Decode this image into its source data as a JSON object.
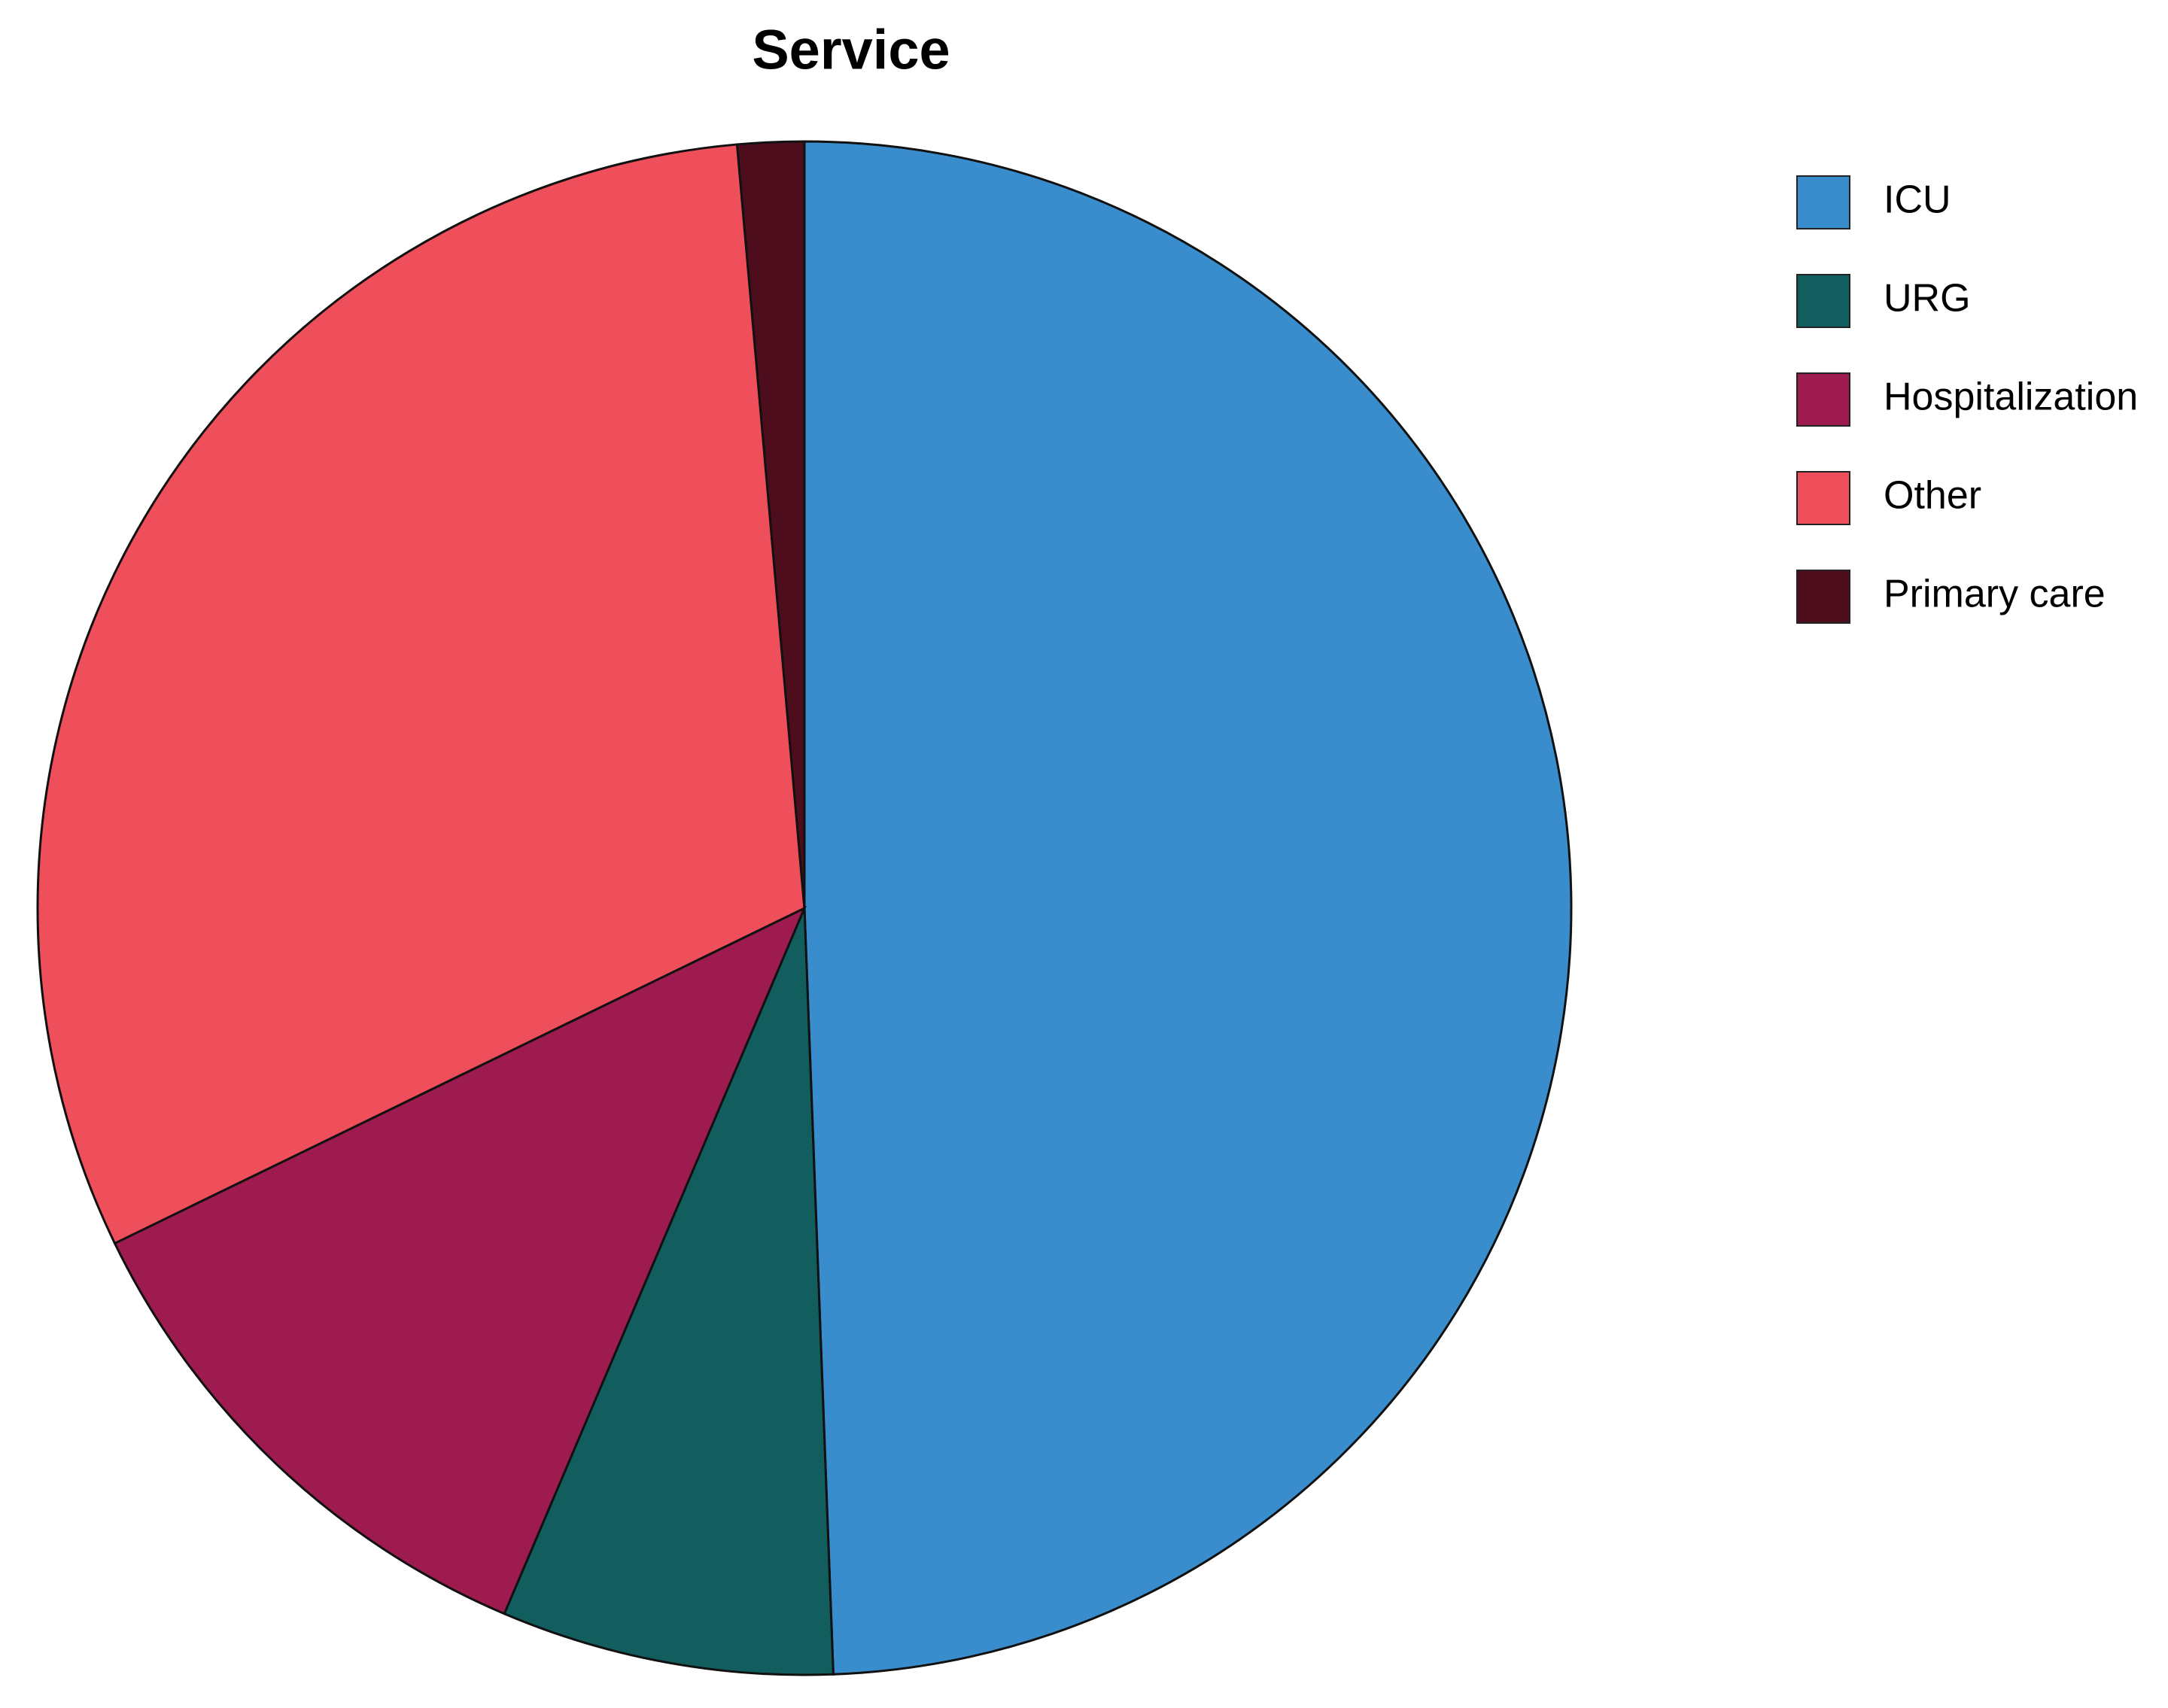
{
  "chart_data": {
    "type": "pie",
    "title": "Service",
    "categories": [
      "ICU",
      "URG",
      "Hospitalization",
      "Other",
      "Primary care"
    ],
    "values": [
      49.4,
      7.0,
      11.4,
      30.8,
      1.4
    ],
    "colors": [
      "#3a8dcc",
      "#125e5e",
      "#9e1b4f",
      "#ef4f5a",
      "#4e0d1d"
    ],
    "legend": "right"
  }
}
